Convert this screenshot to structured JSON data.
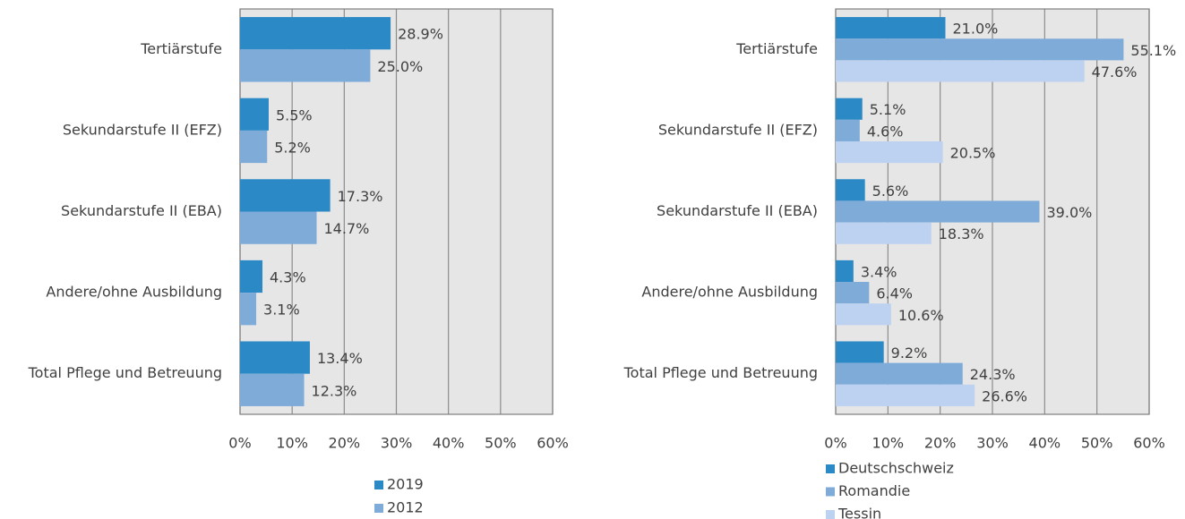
{
  "chart_data": [
    {
      "type": "bar",
      "orientation": "horizontal",
      "categories": [
        "Tertiärstufe",
        "Sekundarstufe II (EFZ)",
        "Sekundarstufe II (EBA)",
        "Andere/ohne Ausbildung",
        "Total Pflege und Betreuung"
      ],
      "series": [
        {
          "name": "2019",
          "color": "#2b8ac6",
          "values": [
            28.9,
            5.5,
            17.3,
            4.3,
            13.4
          ],
          "value_labels": [
            "28.9%",
            "5.5%",
            "17.3%",
            "4.3%",
            "13.4%"
          ]
        },
        {
          "name": "2012",
          "color": "#7fabd9",
          "values": [
            25.0,
            5.2,
            14.7,
            3.1,
            12.3
          ],
          "value_labels": [
            "25.0%",
            "5.2%",
            "14.7%",
            "3.1%",
            "12.3%"
          ]
        }
      ],
      "xlim": [
        0,
        60
      ],
      "xticks": [
        {
          "value": 0,
          "label": "0%"
        },
        {
          "value": 10,
          "label": "10%"
        },
        {
          "value": 20,
          "label": "20%"
        },
        {
          "value": 30,
          "label": "30%"
        },
        {
          "value": 40,
          "label": "40%"
        },
        {
          "value": 50,
          "label": "50%"
        },
        {
          "value": 60,
          "label": "60%"
        }
      ],
      "grid": true,
      "legend": "bottom"
    },
    {
      "type": "bar",
      "orientation": "horizontal",
      "categories": [
        "Tertiärstufe",
        "Sekundarstufe II (EFZ)",
        "Sekundarstufe II (EBA)",
        "Andere/ohne Ausbildung",
        "Total Pflege und Betreuung"
      ],
      "series": [
        {
          "name": "Deutschschweiz",
          "color": "#2b8ac6",
          "values": [
            21.0,
            5.1,
            5.6,
            3.4,
            9.2
          ],
          "value_labels": [
            "21.0%",
            "5.1%",
            "5.6%",
            "3.4%",
            "9.2%"
          ]
        },
        {
          "name": "Romandie",
          "color": "#7fabd9",
          "values": [
            55.1,
            4.6,
            39.0,
            6.4,
            24.3
          ],
          "value_labels": [
            "55.1%",
            "4.6%",
            "39.0%",
            "6.4%",
            "24.3%"
          ]
        },
        {
          "name": "Tessin",
          "color": "#bcd2f0",
          "values": [
            47.6,
            20.5,
            18.3,
            10.6,
            26.6
          ],
          "value_labels": [
            "47.6%",
            "20.5%",
            "18.3%",
            "10.6%",
            "26.6%"
          ]
        }
      ],
      "xlim": [
        0,
        60
      ],
      "xticks": [
        {
          "value": 0,
          "label": "0%"
        },
        {
          "value": 10,
          "label": "10%"
        },
        {
          "value": 20,
          "label": "20%"
        },
        {
          "value": 30,
          "label": "30%"
        },
        {
          "value": 40,
          "label": "40%"
        },
        {
          "value": 50,
          "label": "50%"
        },
        {
          "value": 60,
          "label": "60%"
        }
      ],
      "grid": true,
      "legend": "bottom"
    }
  ]
}
